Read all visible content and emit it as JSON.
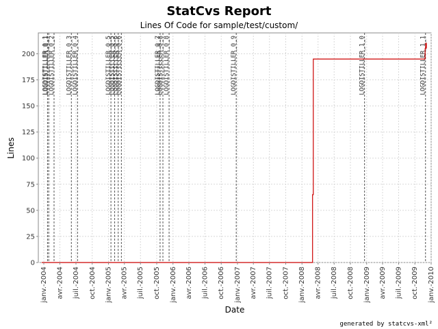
{
  "chart_data": {
    "type": "line",
    "title": "StatCvs Report",
    "subtitle": "Lines Of Code for sample/test/custom/",
    "xlabel": "Date",
    "ylabel": "Lines",
    "footer": "generated by statcvs-xml²",
    "xlim": [
      "2003-12-01",
      "2010-01-01"
    ],
    "ylim": [
      0,
      220
    ],
    "y_ticks": [
      0,
      25,
      50,
      75,
      100,
      125,
      150,
      175,
      200
    ],
    "x_ticks": [
      {
        "date": "2004-01-01",
        "label": "janv.-2004"
      },
      {
        "date": "2004-04-01",
        "label": "avr.-2004"
      },
      {
        "date": "2004-07-01",
        "label": "juil.-2004"
      },
      {
        "date": "2004-10-01",
        "label": "oct.-2004"
      },
      {
        "date": "2005-01-01",
        "label": "janv.-2005"
      },
      {
        "date": "2005-04-01",
        "label": "avr.-2005"
      },
      {
        "date": "2005-07-01",
        "label": "juil.-2005"
      },
      {
        "date": "2005-10-01",
        "label": "oct.-2005"
      },
      {
        "date": "2006-01-01",
        "label": "janv.-2006"
      },
      {
        "date": "2006-04-01",
        "label": "avr.-2006"
      },
      {
        "date": "2006-07-01",
        "label": "juil.-2006"
      },
      {
        "date": "2006-10-01",
        "label": "oct.-2006"
      },
      {
        "date": "2007-01-01",
        "label": "janv.-2007"
      },
      {
        "date": "2007-04-01",
        "label": "avr.-2007"
      },
      {
        "date": "2007-07-01",
        "label": "juil.-2007"
      },
      {
        "date": "2007-10-01",
        "label": "oct.-2007"
      },
      {
        "date": "2008-01-01",
        "label": "janv.-2008"
      },
      {
        "date": "2008-04-01",
        "label": "avr.-2008"
      },
      {
        "date": "2008-07-01",
        "label": "juil.-2008"
      },
      {
        "date": "2008-10-01",
        "label": "oct.-2008"
      },
      {
        "date": "2009-01-01",
        "label": "janv.-2009"
      },
      {
        "date": "2009-04-01",
        "label": "avr.-2009"
      },
      {
        "date": "2009-07-01",
        "label": "juil.-2009"
      },
      {
        "date": "2009-10-01",
        "label": "oct.-2009"
      },
      {
        "date": "2010-01-01",
        "label": "janv.-2010"
      }
    ],
    "grid": true,
    "series": [
      {
        "color": "#cc0000",
        "points": [
          {
            "x": "2003-12-20",
            "y": 0
          },
          {
            "x": "2008-03-01",
            "y": 0
          },
          {
            "x": "2008-03-01",
            "y": 65
          },
          {
            "x": "2008-03-05",
            "y": 65
          },
          {
            "x": "2008-03-05",
            "y": 195
          },
          {
            "x": "2009-11-28",
            "y": 195
          },
          {
            "x": "2009-11-28",
            "y": 205
          },
          {
            "x": "2009-12-01",
            "y": 205
          },
          {
            "x": "2009-12-01",
            "y": 210
          },
          {
            "x": "2009-12-05",
            "y": 210
          },
          {
            "x": "2009-12-05",
            "y": 205
          }
        ]
      }
    ],
    "markers": [
      {
        "date": "2004-01-22",
        "label": "LOGDISTILLER_0_1"
      },
      {
        "date": "2004-01-29",
        "label": "LOGDISTILLER_0_1"
      },
      {
        "date": "2004-02-28",
        "label": "LOGDISTILLER_0_2"
      },
      {
        "date": "2004-06-05",
        "label": "LOGDISTILLER_0_3"
      },
      {
        "date": "2004-07-10",
        "label": "LOGDISTILLER_0_4"
      },
      {
        "date": "2005-01-15",
        "label": "LOGDISTILLER_0_5"
      },
      {
        "date": "2005-02-05",
        "label": "LOGDISTILLER_0_5"
      },
      {
        "date": "2005-02-25",
        "label": "LOGDISTILLER_0_6"
      },
      {
        "date": "2005-03-15",
        "label": "LOGDISTILLER_0_6"
      },
      {
        "date": "2005-10-20",
        "label": "LOGDISTILLER_0_7"
      },
      {
        "date": "2005-11-05",
        "label": "LOGDISTILLER_0_8"
      },
      {
        "date": "2005-12-10",
        "label": "LOGDISTILLER_0_8"
      },
      {
        "date": "2006-12-25",
        "label": "LOGDISTILLER_0_9"
      },
      {
        "date": "2008-12-20",
        "label": "LOGDISTILLER_1_0"
      },
      {
        "date": "2009-11-30",
        "label": "LOGDISTILLER_1_1"
      }
    ]
  },
  "colors": {
    "line": "#cc0000",
    "grid": "#d8d8d8",
    "marker": "#555555",
    "frame": "#888888"
  }
}
